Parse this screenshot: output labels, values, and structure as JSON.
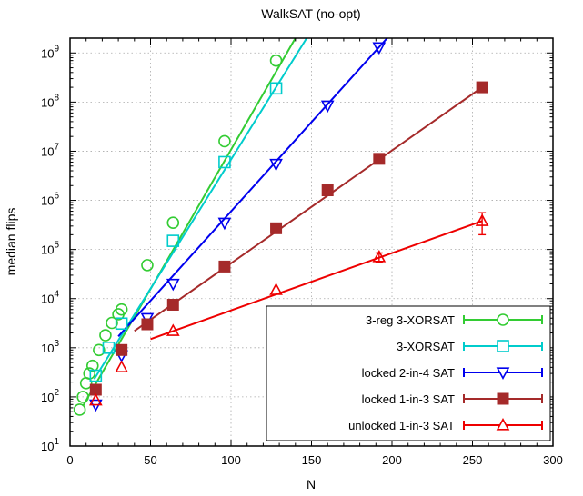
{
  "chart_data": {
    "type": "scatter",
    "title": "WalkSAT (no-opt)",
    "xlabel": "N",
    "ylabel": "median flips",
    "xlim": [
      0,
      300
    ],
    "ylim": [
      10,
      2000000000
    ],
    "yscale": "log",
    "grid": true,
    "legend_position": "bottom-right",
    "x_ticks": [
      {
        "value": 0,
        "label": "0"
      },
      {
        "value": 50,
        "label": "50"
      },
      {
        "value": 100,
        "label": "100"
      },
      {
        "value": 150,
        "label": "150"
      },
      {
        "value": 200,
        "label": "200"
      },
      {
        "value": 250,
        "label": "250"
      },
      {
        "value": 300,
        "label": "300"
      }
    ],
    "y_ticks": [
      {
        "value": 10,
        "base": "10",
        "exp": "1"
      },
      {
        "value": 100,
        "base": "10",
        "exp": "2"
      },
      {
        "value": 1000,
        "base": "10",
        "exp": "3"
      },
      {
        "value": 10000,
        "base": "10",
        "exp": "4"
      },
      {
        "value": 100000,
        "base": "10",
        "exp": "5"
      },
      {
        "value": 1000000,
        "base": "10",
        "exp": "6"
      },
      {
        "value": 10000000,
        "base": "10",
        "exp": "7"
      },
      {
        "value": 100000000,
        "base": "10",
        "exp": "8"
      },
      {
        "value": 1000000000,
        "base": "10",
        "exp": "9"
      }
    ],
    "series": [
      {
        "name": "3-reg 3-XORSAT",
        "color": "#33cc33",
        "marker": "circle-open",
        "x": [
          6,
          8,
          10,
          12,
          14,
          18,
          22,
          26,
          30,
          32,
          48,
          64,
          96,
          128
        ],
        "y": [
          55,
          100,
          190,
          300,
          430,
          900,
          1800,
          3200,
          4800,
          6000,
          48000,
          350000,
          16000000,
          700000000
        ],
        "fit": {
          "x": [
            8,
            140
          ],
          "y": [
            65,
            2000000000
          ]
        }
      },
      {
        "name": "3-XORSAT",
        "color": "#00cccc",
        "marker": "square-open",
        "x": [
          16,
          24,
          32,
          64,
          96,
          128
        ],
        "y": [
          270,
          1000,
          3100,
          150000,
          6000000,
          190000000
        ],
        "fit": {
          "x": [
            15,
            147
          ],
          "y": [
            230,
            2000000000
          ]
        }
      },
      {
        "name": "locked 2-in-4 SAT",
        "color": "#0000ee",
        "marker": "triangle-down-open",
        "x": [
          16,
          32,
          48,
          64,
          96,
          128,
          160,
          192
        ],
        "y": [
          70,
          700,
          4000,
          20000,
          350000,
          5500000,
          85000000,
          1300000000
        ],
        "fit": {
          "x": [
            30,
            197
          ],
          "y": [
            1700,
            2000000000
          ]
        }
      },
      {
        "name": "locked 1-in-3 SAT",
        "color": "#a52a2a",
        "marker": "square-filled",
        "x": [
          16,
          32,
          48,
          64,
          96,
          128,
          160,
          192,
          256
        ],
        "y": [
          140,
          900,
          3000,
          7500,
          45000,
          270000,
          1600000,
          7000000,
          200000000
        ],
        "fit": {
          "x": [
            40,
            256
          ],
          "y": [
            2200,
            200000000
          ]
        }
      },
      {
        "name": "unlocked 1-in-3 SAT",
        "color": "#ee0000",
        "marker": "triangle-up-open",
        "x": [
          16,
          32,
          64,
          128,
          192,
          256
        ],
        "y": [
          85,
          400,
          2200,
          15000,
          70000,
          380000
        ],
        "y_err": [
          0,
          0,
          0,
          0,
          15000,
          180000
        ],
        "fit": {
          "x": [
            50,
            256
          ],
          "y": [
            1500,
            380000
          ]
        }
      }
    ]
  }
}
